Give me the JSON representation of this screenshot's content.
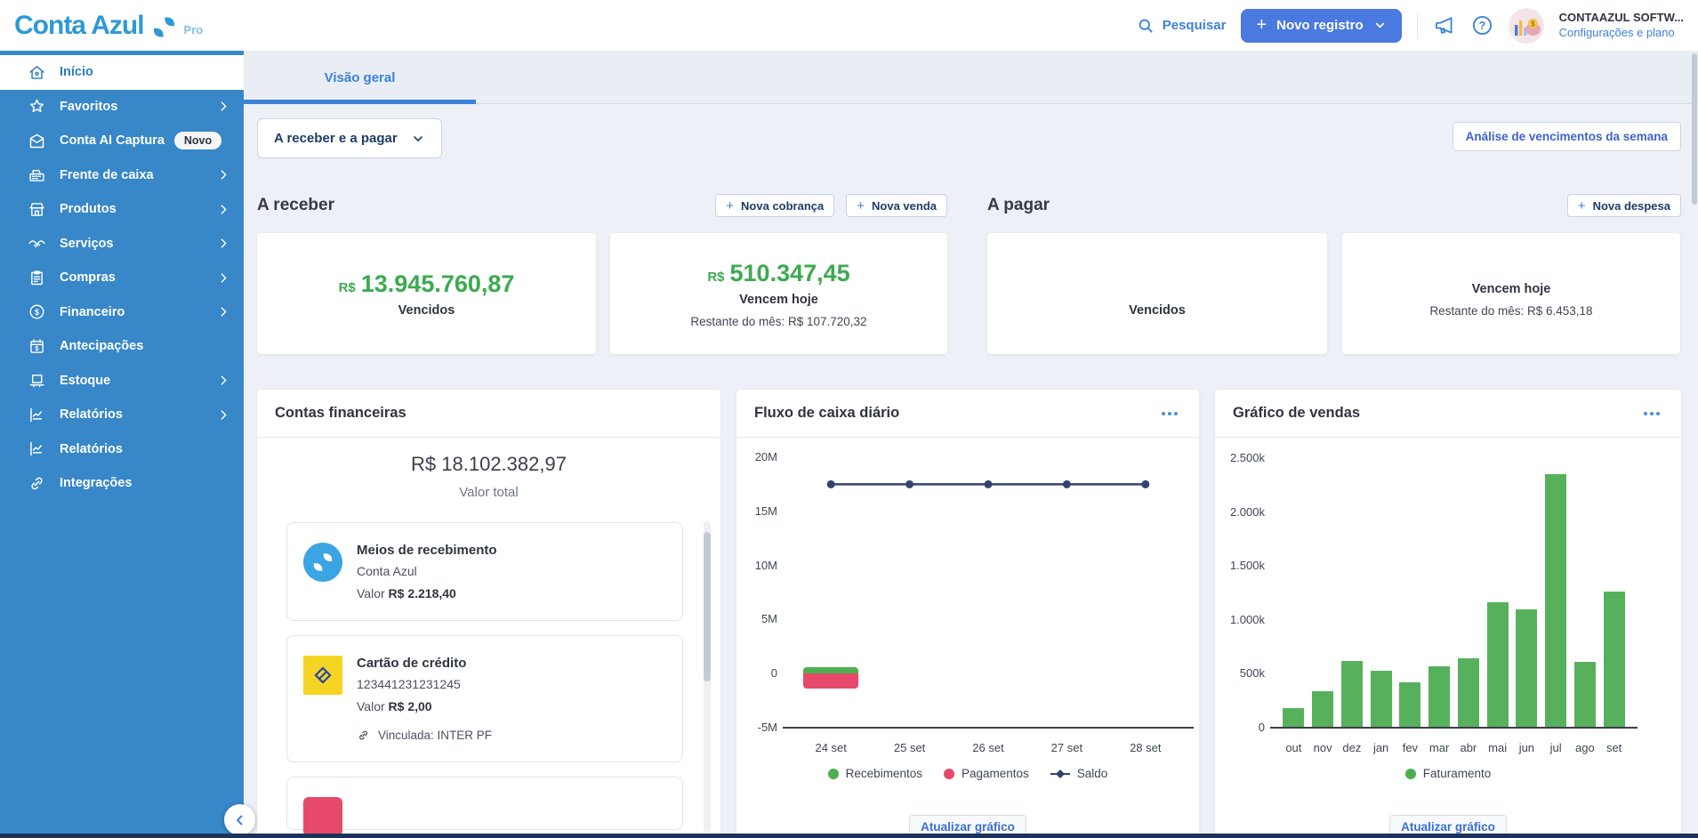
{
  "header": {
    "logo_text": "Conta Azul",
    "logo_badge": "Pro",
    "search_label": "Pesquisar",
    "new_record_label": "Novo registro",
    "account_name": "CONTAAZUL SOFTW...",
    "account_link": "Configurações e plano"
  },
  "sidebar": {
    "items": [
      {
        "label": "Início"
      },
      {
        "label": "Favoritos"
      },
      {
        "label": "Conta AI Captura",
        "badge": "Novo"
      },
      {
        "label": "Frente de caixa"
      },
      {
        "label": "Produtos"
      },
      {
        "label": "Serviços"
      },
      {
        "label": "Compras"
      },
      {
        "label": "Financeiro"
      },
      {
        "label": "Antecipações"
      },
      {
        "label": "Estoque"
      },
      {
        "label": "Relatórios"
      },
      {
        "label": "Relatórios"
      },
      {
        "label": "Integrações"
      }
    ]
  },
  "tabs": {
    "overview": "Visão geral"
  },
  "filters": {
    "period_dropdown": "A receber e a pagar",
    "week_analysis_button": "Análise de vencimentos da semana"
  },
  "receivables": {
    "title": "A receber",
    "new_charge_button": "Nova cobrança",
    "new_sale_button": "Nova venda",
    "overdue": {
      "currency": "R$",
      "amount": "13.945.760,87",
      "label": "Vencidos"
    },
    "due_today": {
      "currency": "R$",
      "amount": "510.347,45",
      "label": "Vencem hoje",
      "rest_of_month": "Restante do mês: R$ 107.720,32"
    }
  },
  "payables": {
    "title": "A pagar",
    "new_expense_button": "Nova despesa",
    "overdue": {
      "label": "Vencidos"
    },
    "due_today": {
      "label": "Vencem hoje",
      "rest_of_month": "Restante do mês: R$ 6.453,18"
    }
  },
  "financial_accounts": {
    "title": "Contas financeiras",
    "total_value": "R$ 18.102.382,97",
    "total_label": "Valor total",
    "accounts": [
      {
        "name": "Meios de recebimento",
        "subtitle": "Conta Azul",
        "value_label": "Valor",
        "value": "R$ 2.218,40",
        "icon": "contaazul-logo-icon"
      },
      {
        "name": "Cartão de crédito",
        "subtitle": "123441231231245",
        "value_label": "Valor",
        "value": "R$ 2,00",
        "linked_label": "Vinculada: INTER PF",
        "icon": "banco-do-brasil-icon"
      }
    ]
  },
  "colors": {
    "primary_blue": "#3b82d9",
    "sidebar_blue": "#3787c9",
    "button_blue": "#4a79df",
    "money_green": "#3caa50",
    "bar_green": "#57b15c",
    "negative_red": "#e6496b",
    "saldo_navy": "#32436e"
  },
  "chart_data": [
    {
      "id": "cash_flow",
      "type": "bar+line",
      "title": "Fluxo de caixa diário",
      "x": [
        "24 set",
        "25 set",
        "26 set",
        "27 set",
        "28 set"
      ],
      "series": [
        {
          "name": "Recebimentos",
          "type": "bar",
          "color": "#4caf50",
          "values": [
            600000,
            0,
            0,
            0,
            0
          ]
        },
        {
          "name": "Pagamentos",
          "type": "bar",
          "color": "#e6496b",
          "values": [
            -1400000,
            0,
            0,
            0,
            0
          ]
        },
        {
          "name": "Saldo",
          "type": "line",
          "color": "#32436e",
          "values": [
            17500000,
            17500000,
            17500000,
            17500000,
            17500000
          ]
        }
      ],
      "ylim": [
        -5000000,
        20000000
      ],
      "yticks": [
        "20M",
        "15M",
        "10M",
        "5M",
        "0",
        "-5M"
      ],
      "legend_position": "bottom",
      "update_button": "Atualizar gráfico"
    },
    {
      "id": "sales",
      "type": "bar",
      "title": "Gráfico de vendas",
      "categories": [
        "out",
        "nov",
        "dez",
        "jan",
        "fev",
        "mar",
        "abr",
        "mai",
        "jun",
        "jul",
        "ago",
        "set"
      ],
      "series": [
        {
          "name": "Faturamento",
          "color": "#57b15c",
          "values_k": [
            180,
            340,
            620,
            530,
            420,
            570,
            640,
            1160,
            1100,
            2350,
            610,
            1260
          ]
        }
      ],
      "ylim_k": [
        0,
        2500
      ],
      "yticks": [
        "2.500k",
        "2.000k",
        "1.500k",
        "1.000k",
        "500k",
        "0"
      ],
      "legend_position": "bottom",
      "update_button": "Atualizar gráfico"
    }
  ]
}
